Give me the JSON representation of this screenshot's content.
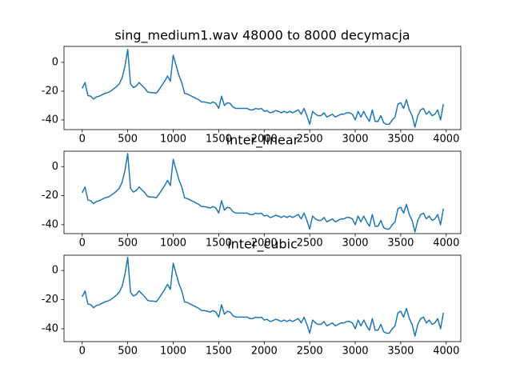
{
  "chart_data": [
    {
      "type": "line",
      "title": "sing_medium1.wav 48000 to 8000 decymacja",
      "x": [
        0,
        31.25,
        62.5,
        93.75,
        125,
        156.25,
        187.5,
        218.75,
        250,
        281.25,
        312.5,
        343.75,
        375,
        406.25,
        437.5,
        468.75,
        500,
        531.25,
        562.5,
        593.75,
        625,
        656.25,
        687.5,
        718.75,
        750,
        781.25,
        812.5,
        843.75,
        875,
        906.25,
        937.5,
        968.75,
        1000,
        1031.25,
        1062.5,
        1093.75,
        1125,
        1156.25,
        1187.5,
        1218.75,
        1250,
        1281.25,
        1312.5,
        1343.75,
        1375,
        1406.25,
        1437.5,
        1468.75,
        1500,
        1531.25,
        1562.5,
        1593.75,
        1625,
        1656.25,
        1687.5,
        1718.75,
        1750,
        1781.25,
        1812.5,
        1843.75,
        1875,
        1906.25,
        1937.5,
        1968.75,
        2000,
        2031.25,
        2062.5,
        2093.75,
        2125,
        2156.25,
        2187.5,
        2218.75,
        2250,
        2281.25,
        2312.5,
        2343.75,
        2375,
        2406.25,
        2437.5,
        2468.75,
        2500,
        2531.25,
        2562.5,
        2593.75,
        2625,
        2656.25,
        2687.5,
        2718.75,
        2750,
        2781.25,
        2812.5,
        2843.75,
        2875,
        2906.25,
        2937.5,
        2968.75,
        3000,
        3031.25,
        3062.5,
        3093.75,
        3125,
        3156.25,
        3187.5,
        3218.75,
        3250,
        3281.25,
        3312.5,
        3343.75,
        3375,
        3406.25,
        3437.5,
        3468.75,
        3500,
        3531.25,
        3562.5,
        3593.75,
        3625,
        3656.25,
        3687.5,
        3718.75,
        3750,
        3781.25,
        3812.5,
        3843.75,
        3875,
        3906.25,
        3937.5,
        3968.75
      ],
      "series": [
        {
          "color": "#1f77b4",
          "values": [
            -18,
            -14,
            -23,
            -23.5,
            -25.5,
            -24,
            -23.5,
            -22.5,
            -21.5,
            -21,
            -20,
            -18.5,
            -17,
            -15,
            -11,
            -3,
            9,
            -15,
            -17.5,
            -16.5,
            -14,
            -16,
            -18,
            -20.5,
            -21,
            -21,
            -21.5,
            -19,
            -16,
            -13,
            -9.5,
            -13,
            5,
            -2,
            -9,
            -14,
            -21.5,
            -22,
            -23,
            -24,
            -25,
            -26,
            -27.5,
            -27.5,
            -28,
            -28.5,
            -27.5,
            -28.5,
            -32,
            -23.5,
            -30,
            -28,
            -28.5,
            -31,
            -32,
            -32,
            -32,
            -32,
            -32,
            -33,
            -33,
            -32,
            -32.5,
            -32,
            -34,
            -33.5,
            -35,
            -34.5,
            -33.5,
            -34,
            -35,
            -34,
            -35,
            -34,
            -35,
            -34,
            -33,
            -36,
            -32,
            -37,
            -43,
            -34,
            -36,
            -37,
            -37,
            -35,
            -38,
            -37,
            -36,
            -38,
            -37,
            -36,
            -36,
            -35,
            -35,
            -36,
            -40,
            -34,
            -38,
            -34,
            -38,
            -41,
            -33,
            -41,
            -41,
            -37,
            -42,
            -43,
            -43,
            -40,
            -38,
            -29,
            -28,
            -32,
            -26,
            -33,
            -37,
            -45,
            -37,
            -33,
            -32,
            -36,
            -34,
            -37,
            -36,
            -33,
            -40,
            -29
          ]
        }
      ],
      "xlim": [
        -200,
        4160
      ],
      "ylim": [
        -46.7,
        11.1
      ],
      "xticks": [
        0,
        500,
        1000,
        1500,
        2000,
        2500,
        3000,
        3500,
        4000
      ],
      "yticks": [
        -40,
        -20,
        0
      ]
    },
    {
      "type": "line",
      "title": "inter_linear",
      "x": [
        0,
        31.25,
        62.5,
        93.75,
        125,
        156.25,
        187.5,
        218.75,
        250,
        281.25,
        312.5,
        343.75,
        375,
        406.25,
        437.5,
        468.75,
        500,
        531.25,
        562.5,
        593.75,
        625,
        656.25,
        687.5,
        718.75,
        750,
        781.25,
        812.5,
        843.75,
        875,
        906.25,
        937.5,
        968.75,
        1000,
        1031.25,
        1062.5,
        1093.75,
        1125,
        1156.25,
        1187.5,
        1218.75,
        1250,
        1281.25,
        1312.5,
        1343.75,
        1375,
        1406.25,
        1437.5,
        1468.75,
        1500,
        1531.25,
        1562.5,
        1593.75,
        1625,
        1656.25,
        1687.5,
        1718.75,
        1750,
        1781.25,
        1812.5,
        1843.75,
        1875,
        1906.25,
        1937.5,
        1968.75,
        2000,
        2031.25,
        2062.5,
        2093.75,
        2125,
        2156.25,
        2187.5,
        2218.75,
        2250,
        2281.25,
        2312.5,
        2343.75,
        2375,
        2406.25,
        2437.5,
        2468.75,
        2500,
        2531.25,
        2562.5,
        2593.75,
        2625,
        2656.25,
        2687.5,
        2718.75,
        2750,
        2781.25,
        2812.5,
        2843.75,
        2875,
        2906.25,
        2937.5,
        2968.75,
        3000,
        3031.25,
        3062.5,
        3093.75,
        3125,
        3156.25,
        3187.5,
        3218.75,
        3250,
        3281.25,
        3312.5,
        3343.75,
        3375,
        3406.25,
        3437.5,
        3468.75,
        3500,
        3531.25,
        3562.5,
        3593.75,
        3625,
        3656.25,
        3687.5,
        3718.75,
        3750,
        3781.25,
        3812.5,
        3843.75,
        3875,
        3906.25,
        3937.5,
        3968.75
      ],
      "series": [
        {
          "color": "#1f77b4",
          "values": [
            -18,
            -14,
            -23,
            -23.5,
            -25.5,
            -24,
            -23.5,
            -22.5,
            -21.5,
            -21,
            -20,
            -18.5,
            -17,
            -15,
            -11,
            -3,
            9,
            -15,
            -17.5,
            -16.5,
            -14,
            -16,
            -18,
            -20.5,
            -21,
            -21,
            -21.5,
            -19,
            -16,
            -13,
            -9.5,
            -13,
            5,
            -2,
            -9,
            -14,
            -21.5,
            -22,
            -23,
            -24,
            -25,
            -26,
            -27.5,
            -27.5,
            -28,
            -28.5,
            -27.5,
            -28.5,
            -32,
            -23.5,
            -30,
            -28,
            -28.5,
            -31,
            -32,
            -32,
            -32,
            -32,
            -32,
            -33,
            -33,
            -32,
            -32.5,
            -32,
            -34,
            -33.5,
            -35,
            -34.5,
            -33.5,
            -34,
            -35,
            -34,
            -35,
            -34,
            -35,
            -34,
            -33,
            -36,
            -32,
            -37,
            -43,
            -34,
            -36,
            -37,
            -37,
            -35,
            -38,
            -37,
            -36,
            -38,
            -37,
            -36,
            -36,
            -35,
            -35,
            -36,
            -40,
            -34,
            -38,
            -34,
            -38,
            -41,
            -33,
            -41,
            -41,
            -37,
            -42,
            -43,
            -43,
            -40,
            -38,
            -29,
            -28,
            -32,
            -26,
            -33,
            -37,
            -45,
            -37,
            -33,
            -32,
            -36,
            -34,
            -37,
            -36,
            -33,
            -40,
            -29
          ]
        }
      ],
      "xlim": [
        -200,
        4160
      ],
      "ylim": [
        -46.1,
        10.6
      ],
      "xticks": [
        0,
        500,
        1000,
        1500,
        2000,
        2500,
        3000,
        3500,
        4000
      ],
      "yticks": [
        -40,
        -20,
        0
      ]
    },
    {
      "type": "line",
      "title": "inter_cubic",
      "x": [
        0,
        31.25,
        62.5,
        93.75,
        125,
        156.25,
        187.5,
        218.75,
        250,
        281.25,
        312.5,
        343.75,
        375,
        406.25,
        437.5,
        468.75,
        500,
        531.25,
        562.5,
        593.75,
        625,
        656.25,
        687.5,
        718.75,
        750,
        781.25,
        812.5,
        843.75,
        875,
        906.25,
        937.5,
        968.75,
        1000,
        1031.25,
        1062.5,
        1093.75,
        1125,
        1156.25,
        1187.5,
        1218.75,
        1250,
        1281.25,
        1312.5,
        1343.75,
        1375,
        1406.25,
        1437.5,
        1468.75,
        1500,
        1531.25,
        1562.5,
        1593.75,
        1625,
        1656.25,
        1687.5,
        1718.75,
        1750,
        1781.25,
        1812.5,
        1843.75,
        1875,
        1906.25,
        1937.5,
        1968.75,
        2000,
        2031.25,
        2062.5,
        2093.75,
        2125,
        2156.25,
        2187.5,
        2218.75,
        2250,
        2281.25,
        2312.5,
        2343.75,
        2375,
        2406.25,
        2437.5,
        2468.75,
        2500,
        2531.25,
        2562.5,
        2593.75,
        2625,
        2656.25,
        2687.5,
        2718.75,
        2750,
        2781.25,
        2812.5,
        2843.75,
        2875,
        2906.25,
        2937.5,
        2968.75,
        3000,
        3031.25,
        3062.5,
        3093.75,
        3125,
        3156.25,
        3187.5,
        3218.75,
        3250,
        3281.25,
        3312.5,
        3343.75,
        3375,
        3406.25,
        3437.5,
        3468.75,
        3500,
        3531.25,
        3562.5,
        3593.75,
        3625,
        3656.25,
        3687.5,
        3718.75,
        3750,
        3781.25,
        3812.5,
        3843.75,
        3875,
        3906.25,
        3937.5,
        3968.75
      ],
      "series": [
        {
          "color": "#1f77b4",
          "values": [
            -18,
            -14,
            -23,
            -23.5,
            -25.5,
            -24,
            -23.5,
            -22.5,
            -21.5,
            -21,
            -20,
            -18.5,
            -17,
            -15,
            -11,
            -3,
            9,
            -15,
            -17.5,
            -16.5,
            -14,
            -16,
            -18,
            -20.5,
            -21,
            -21,
            -21.5,
            -19,
            -16,
            -13,
            -9.5,
            -13,
            5,
            -2,
            -9,
            -14,
            -21.5,
            -22,
            -23,
            -24,
            -25,
            -26,
            -27.5,
            -27.5,
            -28,
            -28.5,
            -27.5,
            -28.5,
            -32,
            -23.5,
            -30,
            -28,
            -28.5,
            -31,
            -32,
            -32,
            -32,
            -32,
            -32,
            -33,
            -33,
            -32,
            -32.5,
            -32,
            -34,
            -33.5,
            -35,
            -34.5,
            -33.5,
            -34,
            -35,
            -34,
            -35,
            -34,
            -35,
            -34,
            -33,
            -36,
            -32,
            -37,
            -43,
            -34,
            -36,
            -37,
            -37,
            -35,
            -38,
            -37,
            -36,
            -38,
            -37,
            -36,
            -36,
            -35,
            -35,
            -36,
            -40,
            -34,
            -38,
            -34,
            -38,
            -41,
            -33,
            -41,
            -41,
            -37,
            -42,
            -43,
            -43,
            -40,
            -38,
            -29,
            -28,
            -32,
            -26,
            -33,
            -37,
            -45,
            -37,
            -33,
            -32,
            -36,
            -34,
            -37,
            -36,
            -33,
            -40,
            -29
          ]
        }
      ],
      "xlim": [
        -200,
        4160
      ],
      "ylim": [
        -48.8,
        10.5
      ],
      "xticks": [
        0,
        500,
        1000,
        1500,
        2000,
        2500,
        3000,
        3500,
        4000
      ],
      "yticks": [
        -40,
        -20,
        0
      ]
    }
  ]
}
